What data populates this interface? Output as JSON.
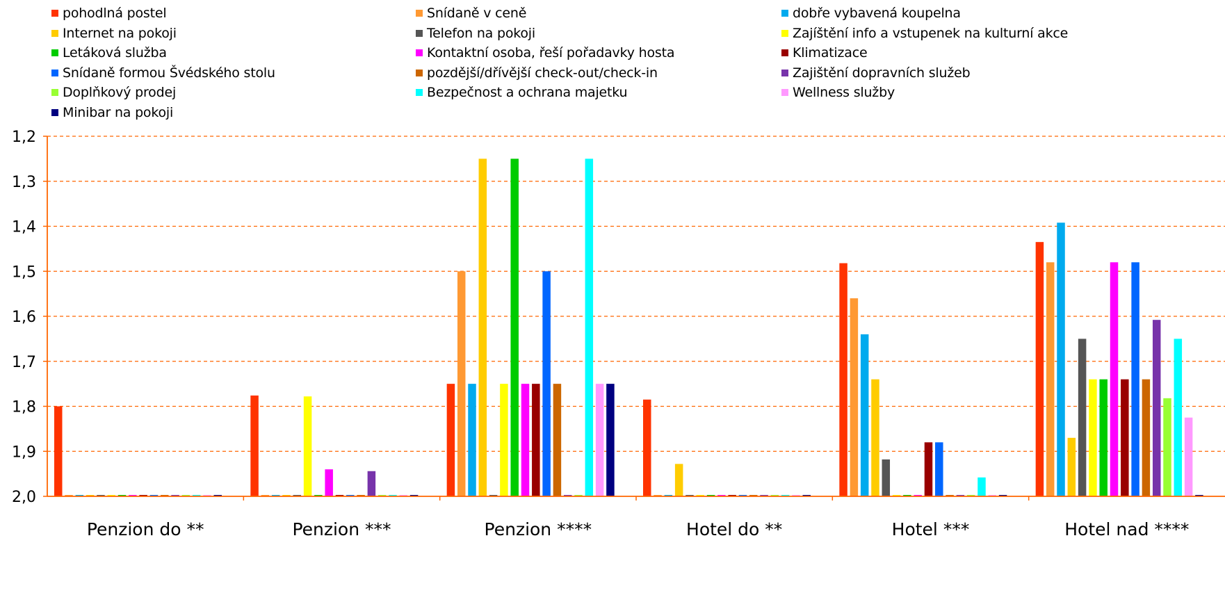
{
  "chart_data": {
    "type": "bar",
    "title": "",
    "xlabel": "",
    "ylabel": "",
    "y_axis_inverted": true,
    "ylim": [
      1.2,
      2.0
    ],
    "yticks": [
      "1,2",
      "1,3",
      "1,4",
      "1,5",
      "1,6",
      "1,7",
      "1,8",
      "1,9",
      "2,0"
    ],
    "grid": "horizontal dashed",
    "legend_position": "top",
    "categories": [
      "Penzion do **",
      "Penzion ***",
      "Penzion ****",
      "Hotel do **",
      "Hotel ***",
      "Hotel nad ****"
    ],
    "series": [
      {
        "name": "pohodlná postel",
        "color": "#FF3300",
        "values": [
          1.8,
          1.776,
          1.75,
          1.785,
          1.482,
          1.435
        ]
      },
      {
        "name": "Snídaně v ceně",
        "color": "#FF9933",
        "values": [
          2.0,
          2.0,
          1.5,
          2.0,
          1.56,
          1.48
        ]
      },
      {
        "name": "dobře vybavená koupelna",
        "color": "#00AAEE",
        "values": [
          2.0,
          2.0,
          1.75,
          2.0,
          1.64,
          1.392
        ]
      },
      {
        "name": "Internet na pokoji",
        "color": "#FFCC00",
        "values": [
          2.0,
          2.0,
          1.25,
          1.928,
          1.74,
          1.87
        ]
      },
      {
        "name": "Telefon na pokoji",
        "color": "#555555",
        "values": [
          2.0,
          2.0,
          2.0,
          2.0,
          1.918,
          1.65
        ]
      },
      {
        "name": "Zajíštění info a vstupenek na kulturní akce",
        "color": "#FFFF00",
        "values": [
          2.0,
          1.778,
          1.75,
          2.0,
          2.0,
          1.74
        ]
      },
      {
        "name": "Letáková služba",
        "color": "#00CC00",
        "values": [
          2.0,
          2.0,
          1.25,
          2.0,
          2.0,
          1.74
        ]
      },
      {
        "name": "Kontaktní osoba, řeší pořadavky hosta",
        "color": "#FF00FF",
        "values": [
          2.0,
          1.94,
          1.75,
          2.0,
          2.0,
          1.48
        ]
      },
      {
        "name": "Klimatizace",
        "color": "#990000",
        "values": [
          2.0,
          2.0,
          1.75,
          2.0,
          1.88,
          1.74
        ]
      },
      {
        "name": "Snídaně formou Švédského stolu",
        "color": "#0066FF",
        "values": [
          2.0,
          2.0,
          1.5,
          2.0,
          1.88,
          1.48
        ]
      },
      {
        "name": "pozdější/dřívější check-out/check-in",
        "color": "#CC6600",
        "values": [
          2.0,
          2.0,
          1.75,
          2.0,
          2.0,
          1.74
        ]
      },
      {
        "name": "Zajištění dopravních služeb",
        "color": "#7733AA",
        "values": [
          2.0,
          1.944,
          2.0,
          2.0,
          2.0,
          1.608
        ]
      },
      {
        "name": "Doplňkový prodej",
        "color": "#99FF33",
        "values": [
          2.0,
          2.0,
          2.0,
          2.0,
          2.0,
          1.782
        ]
      },
      {
        "name": "Bezpečnost a ochrana majetku",
        "color": "#00FFFF",
        "values": [
          2.0,
          2.0,
          1.25,
          2.0,
          1.958,
          1.65
        ]
      },
      {
        "name": "Wellness služby",
        "color": "#FF99FF",
        "values": [
          2.0,
          2.0,
          1.75,
          2.0,
          2.0,
          1.825
        ]
      },
      {
        "name": "Minibar na pokoji",
        "color": "#000080",
        "values": [
          2.0,
          2.0,
          1.75,
          2.0,
          2.0,
          2.0
        ]
      }
    ]
  }
}
